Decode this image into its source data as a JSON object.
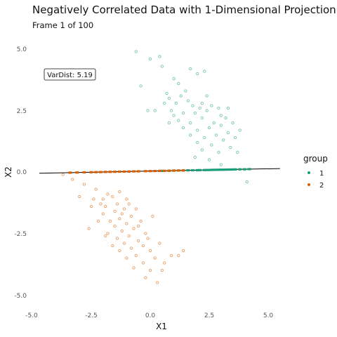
{
  "chart_data": {
    "type": "scatter",
    "title": "Negatively Correlated Data with 1-Dimensional Projection",
    "subtitle": "Frame 1 of 100",
    "xlabel": "X1",
    "ylabel": "X2",
    "xlim": [
      -5.2,
      5.8
    ],
    "ylim": [
      -5.3,
      5.3
    ],
    "xticks": [
      "-5.0",
      "-2.5",
      "0.0",
      "2.5",
      "5.0"
    ],
    "yticks": [
      "5.0",
      "2.5",
      "0.0",
      "-2.5",
      "-5.0"
    ],
    "grid": false,
    "legend": {
      "title": "group",
      "position": "right",
      "entries": [
        "1",
        "2"
      ]
    },
    "colors": {
      "1": "#1b9e77",
      "2": "#d95f02"
    },
    "annotation": {
      "label": "VarDist: 5.19",
      "x": -4.3,
      "y": 4.0
    },
    "projection_line": {
      "x": [
        -4.7,
        5.5
      ],
      "y": [
        -0.05,
        0.14
      ]
    },
    "series": [
      {
        "name": "1",
        "points": [
          [
            -0.6,
            4.9
          ],
          [
            0.4,
            4.7
          ],
          [
            0.0,
            4.6
          ],
          [
            0.5,
            4.3
          ],
          [
            -0.4,
            3.5
          ],
          [
            1.0,
            3.8
          ],
          [
            1.7,
            4.2
          ],
          [
            2.3,
            4.1
          ],
          [
            2.0,
            4.0
          ],
          [
            1.2,
            3.6
          ],
          [
            1.5,
            3.3
          ],
          [
            0.8,
            3.0
          ],
          [
            0.6,
            2.8
          ],
          [
            1.1,
            2.8
          ],
          [
            1.6,
            2.9
          ],
          [
            2.2,
            2.8
          ],
          [
            2.6,
            2.7
          ],
          [
            0.2,
            2.5
          ],
          [
            0.9,
            2.5
          ],
          [
            1.4,
            2.4
          ],
          [
            1.9,
            2.4
          ],
          [
            2.4,
            2.5
          ],
          [
            3.0,
            2.3
          ],
          [
            -0.1,
            2.5
          ],
          [
            1.2,
            2.1
          ],
          [
            1.7,
            2.0
          ],
          [
            2.2,
            2.2
          ],
          [
            2.7,
            2.0
          ],
          [
            3.2,
            2.2
          ],
          [
            0.8,
            2.0
          ],
          [
            1.4,
            1.8
          ],
          [
            2.0,
            1.7
          ],
          [
            2.5,
            1.8
          ],
          [
            3.0,
            1.9
          ],
          [
            3.5,
            2.0
          ],
          [
            1.7,
            1.5
          ],
          [
            2.3,
            1.4
          ],
          [
            2.8,
            1.5
          ],
          [
            3.3,
            1.6
          ],
          [
            2.0,
            1.2
          ],
          [
            2.6,
            1.1
          ],
          [
            3.1,
            1.3
          ],
          [
            3.6,
            1.4
          ],
          [
            2.2,
            0.9
          ],
          [
            2.9,
            0.8
          ],
          [
            3.4,
            1.0
          ],
          [
            1.9,
            0.6
          ],
          [
            2.5,
            0.5
          ],
          [
            3.0,
            0.3
          ],
          [
            3.7,
            0.8
          ],
          [
            4.1,
            -0.4
          ],
          [
            2.1,
            2.6
          ],
          [
            1.3,
            3.1
          ],
          [
            0.7,
            3.2
          ],
          [
            2.9,
            2.6
          ],
          [
            3.3,
            2.6
          ],
          [
            3.8,
            1.7
          ],
          [
            1.0,
            2.3
          ],
          [
            2.4,
            3.1
          ],
          [
            1.8,
            2.7
          ]
        ],
        "projected_x": [
          0.5,
          0.8,
          1.0,
          1.2,
          1.4,
          1.6,
          1.8,
          2.0,
          2.1,
          2.3,
          2.4,
          2.5,
          2.6,
          2.7,
          2.8,
          2.9,
          3.0,
          3.1,
          3.2,
          3.3,
          3.4,
          3.5,
          3.6,
          3.8,
          4.0,
          4.2
        ]
      },
      {
        "name": "2",
        "points": [
          [
            -3.3,
            -0.3
          ],
          [
            -2.3,
            -0.7
          ],
          [
            -3.0,
            -1.0
          ],
          [
            -1.3,
            -0.8
          ],
          [
            -1.6,
            -1.0
          ],
          [
            -2.0,
            -1.1
          ],
          [
            -1.0,
            -1.1
          ],
          [
            -1.4,
            -1.3
          ],
          [
            -1.9,
            -1.4
          ],
          [
            -2.5,
            -1.4
          ],
          [
            -1.1,
            -1.5
          ],
          [
            -0.6,
            -1.5
          ],
          [
            -1.5,
            -1.6
          ],
          [
            -2.0,
            -1.7
          ],
          [
            -0.8,
            -1.8
          ],
          [
            -1.3,
            -1.9
          ],
          [
            -1.7,
            -2.0
          ],
          [
            -2.2,
            -2.0
          ],
          [
            -0.4,
            -2.0
          ],
          [
            -1.0,
            -2.1
          ],
          [
            -1.5,
            -2.2
          ],
          [
            -2.6,
            -2.3
          ],
          [
            -0.7,
            -2.3
          ],
          [
            -1.2,
            -2.4
          ],
          [
            -1.8,
            -2.5
          ],
          [
            -0.2,
            -2.5
          ],
          [
            -0.9,
            -2.6
          ],
          [
            -1.4,
            -2.7
          ],
          [
            -0.5,
            -2.8
          ],
          [
            -1.1,
            -2.9
          ],
          [
            -1.6,
            -3.0
          ],
          [
            -0.3,
            -3.0
          ],
          [
            -0.8,
            -3.1
          ],
          [
            -1.3,
            -3.2
          ],
          [
            0.0,
            -3.2
          ],
          [
            0.4,
            -2.9
          ],
          [
            -0.6,
            -3.4
          ],
          [
            -1.0,
            -3.5
          ],
          [
            0.2,
            -3.5
          ],
          [
            -0.3,
            -3.7
          ],
          [
            0.6,
            -3.7
          ],
          [
            -0.7,
            -3.9
          ],
          [
            0.0,
            -4.0
          ],
          [
            0.5,
            -4.0
          ],
          [
            -0.2,
            -4.3
          ],
          [
            0.3,
            -4.5
          ],
          [
            -3.7,
            -0.1
          ],
          [
            -2.8,
            -0.5
          ],
          [
            -2.4,
            -1.1
          ],
          [
            -0.9,
            -1.3
          ],
          [
            1.4,
            -3.2
          ],
          [
            1.2,
            -3.4
          ],
          [
            0.9,
            -3.4
          ],
          [
            -0.5,
            -2.2
          ],
          [
            -1.9,
            -2.6
          ],
          [
            -0.1,
            -2.7
          ],
          [
            0.1,
            -1.8
          ],
          [
            -2.1,
            -1.3
          ],
          [
            -1.8,
            -0.9
          ],
          [
            -1.2,
            -1.7
          ]
        ],
        "projected_x": [
          -3.4,
          -3.1,
          -2.8,
          -2.5,
          -2.3,
          -2.1,
          -1.9,
          -1.7,
          -1.5,
          -1.3,
          -1.1,
          -0.9,
          -0.7,
          -0.5,
          -0.2,
          0.0,
          0.2,
          0.4,
          0.6,
          0.8,
          1.0,
          1.2,
          1.4
        ]
      }
    ]
  }
}
